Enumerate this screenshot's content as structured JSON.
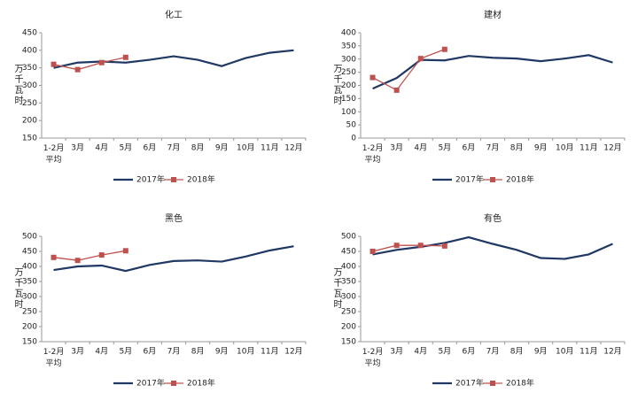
{
  "chart_data": [
    {
      "type": "line",
      "title": "化工",
      "ylabel": "万千瓦时",
      "categories": [
        "1-2月\n平均",
        "3月",
        "4月",
        "5月",
        "6月",
        "7月",
        "8月",
        "9月",
        "10月",
        "11月",
        "12月"
      ],
      "series": [
        {
          "name": "2017年",
          "color": "#1f3864",
          "values": [
            350,
            365,
            368,
            365,
            373,
            383,
            373,
            355,
            378,
            393,
            400
          ]
        },
        {
          "name": "2018年",
          "color": "#c0504d",
          "values": [
            360,
            345,
            365,
            380,
            null,
            null,
            null,
            null,
            null,
            null,
            null
          ]
        }
      ],
      "ylim": [
        150,
        450
      ],
      "yticks": [
        150,
        200,
        250,
        300,
        350,
        400,
        450
      ]
    },
    {
      "type": "line",
      "title": "建材",
      "ylabel": "万千瓦时",
      "categories": [
        "1-2月\n平均",
        "3月",
        "4月",
        "5月",
        "6月",
        "7月",
        "8月",
        "9月",
        "10月",
        "11月",
        "12月"
      ],
      "series": [
        {
          "name": "2017年",
          "color": "#1f3864",
          "values": [
            188,
            228,
            297,
            295,
            312,
            305,
            302,
            292,
            302,
            315,
            287
          ]
        },
        {
          "name": "2018年",
          "color": "#c0504d",
          "values": [
            230,
            182,
            302,
            337,
            null,
            null,
            null,
            null,
            null,
            null,
            null
          ]
        }
      ],
      "ylim": [
        0,
        400
      ],
      "yticks": [
        0,
        50,
        100,
        150,
        200,
        250,
        300,
        350,
        400
      ]
    },
    {
      "type": "line",
      "title": "黑色",
      "ylabel": "万千瓦时",
      "categories": [
        "1-2月\n平均",
        "3月",
        "4月",
        "5月",
        "6月",
        "7月",
        "8月",
        "9月",
        "10月",
        "11月",
        "12月"
      ],
      "series": [
        {
          "name": "2017年",
          "color": "#1f3864",
          "values": [
            388,
            400,
            403,
            385,
            405,
            418,
            420,
            416,
            433,
            453,
            467
          ]
        },
        {
          "name": "2018年",
          "color": "#c0504d",
          "values": [
            430,
            420,
            438,
            452,
            null,
            null,
            null,
            null,
            null,
            null,
            null
          ]
        }
      ],
      "ylim": [
        150,
        500
      ],
      "yticks": [
        150,
        200,
        250,
        300,
        350,
        400,
        450,
        500
      ]
    },
    {
      "type": "line",
      "title": "有色",
      "ylabel": "万千瓦时",
      "categories": [
        "1-2月\n平均",
        "3月",
        "4月",
        "5月",
        "6月",
        "7月",
        "8月",
        "9月",
        "10月",
        "11月",
        "12月"
      ],
      "series": [
        {
          "name": "2017年",
          "color": "#1f3864",
          "values": [
            440,
            455,
            465,
            478,
            497,
            475,
            455,
            428,
            425,
            440,
            475
          ]
        },
        {
          "name": "2018年",
          "color": "#c0504d",
          "values": [
            450,
            470,
            470,
            468,
            null,
            null,
            null,
            null,
            null,
            null,
            null
          ]
        }
      ],
      "ylim": [
        150,
        500
      ],
      "yticks": [
        150,
        200,
        250,
        300,
        350,
        400,
        450,
        500
      ]
    }
  ]
}
